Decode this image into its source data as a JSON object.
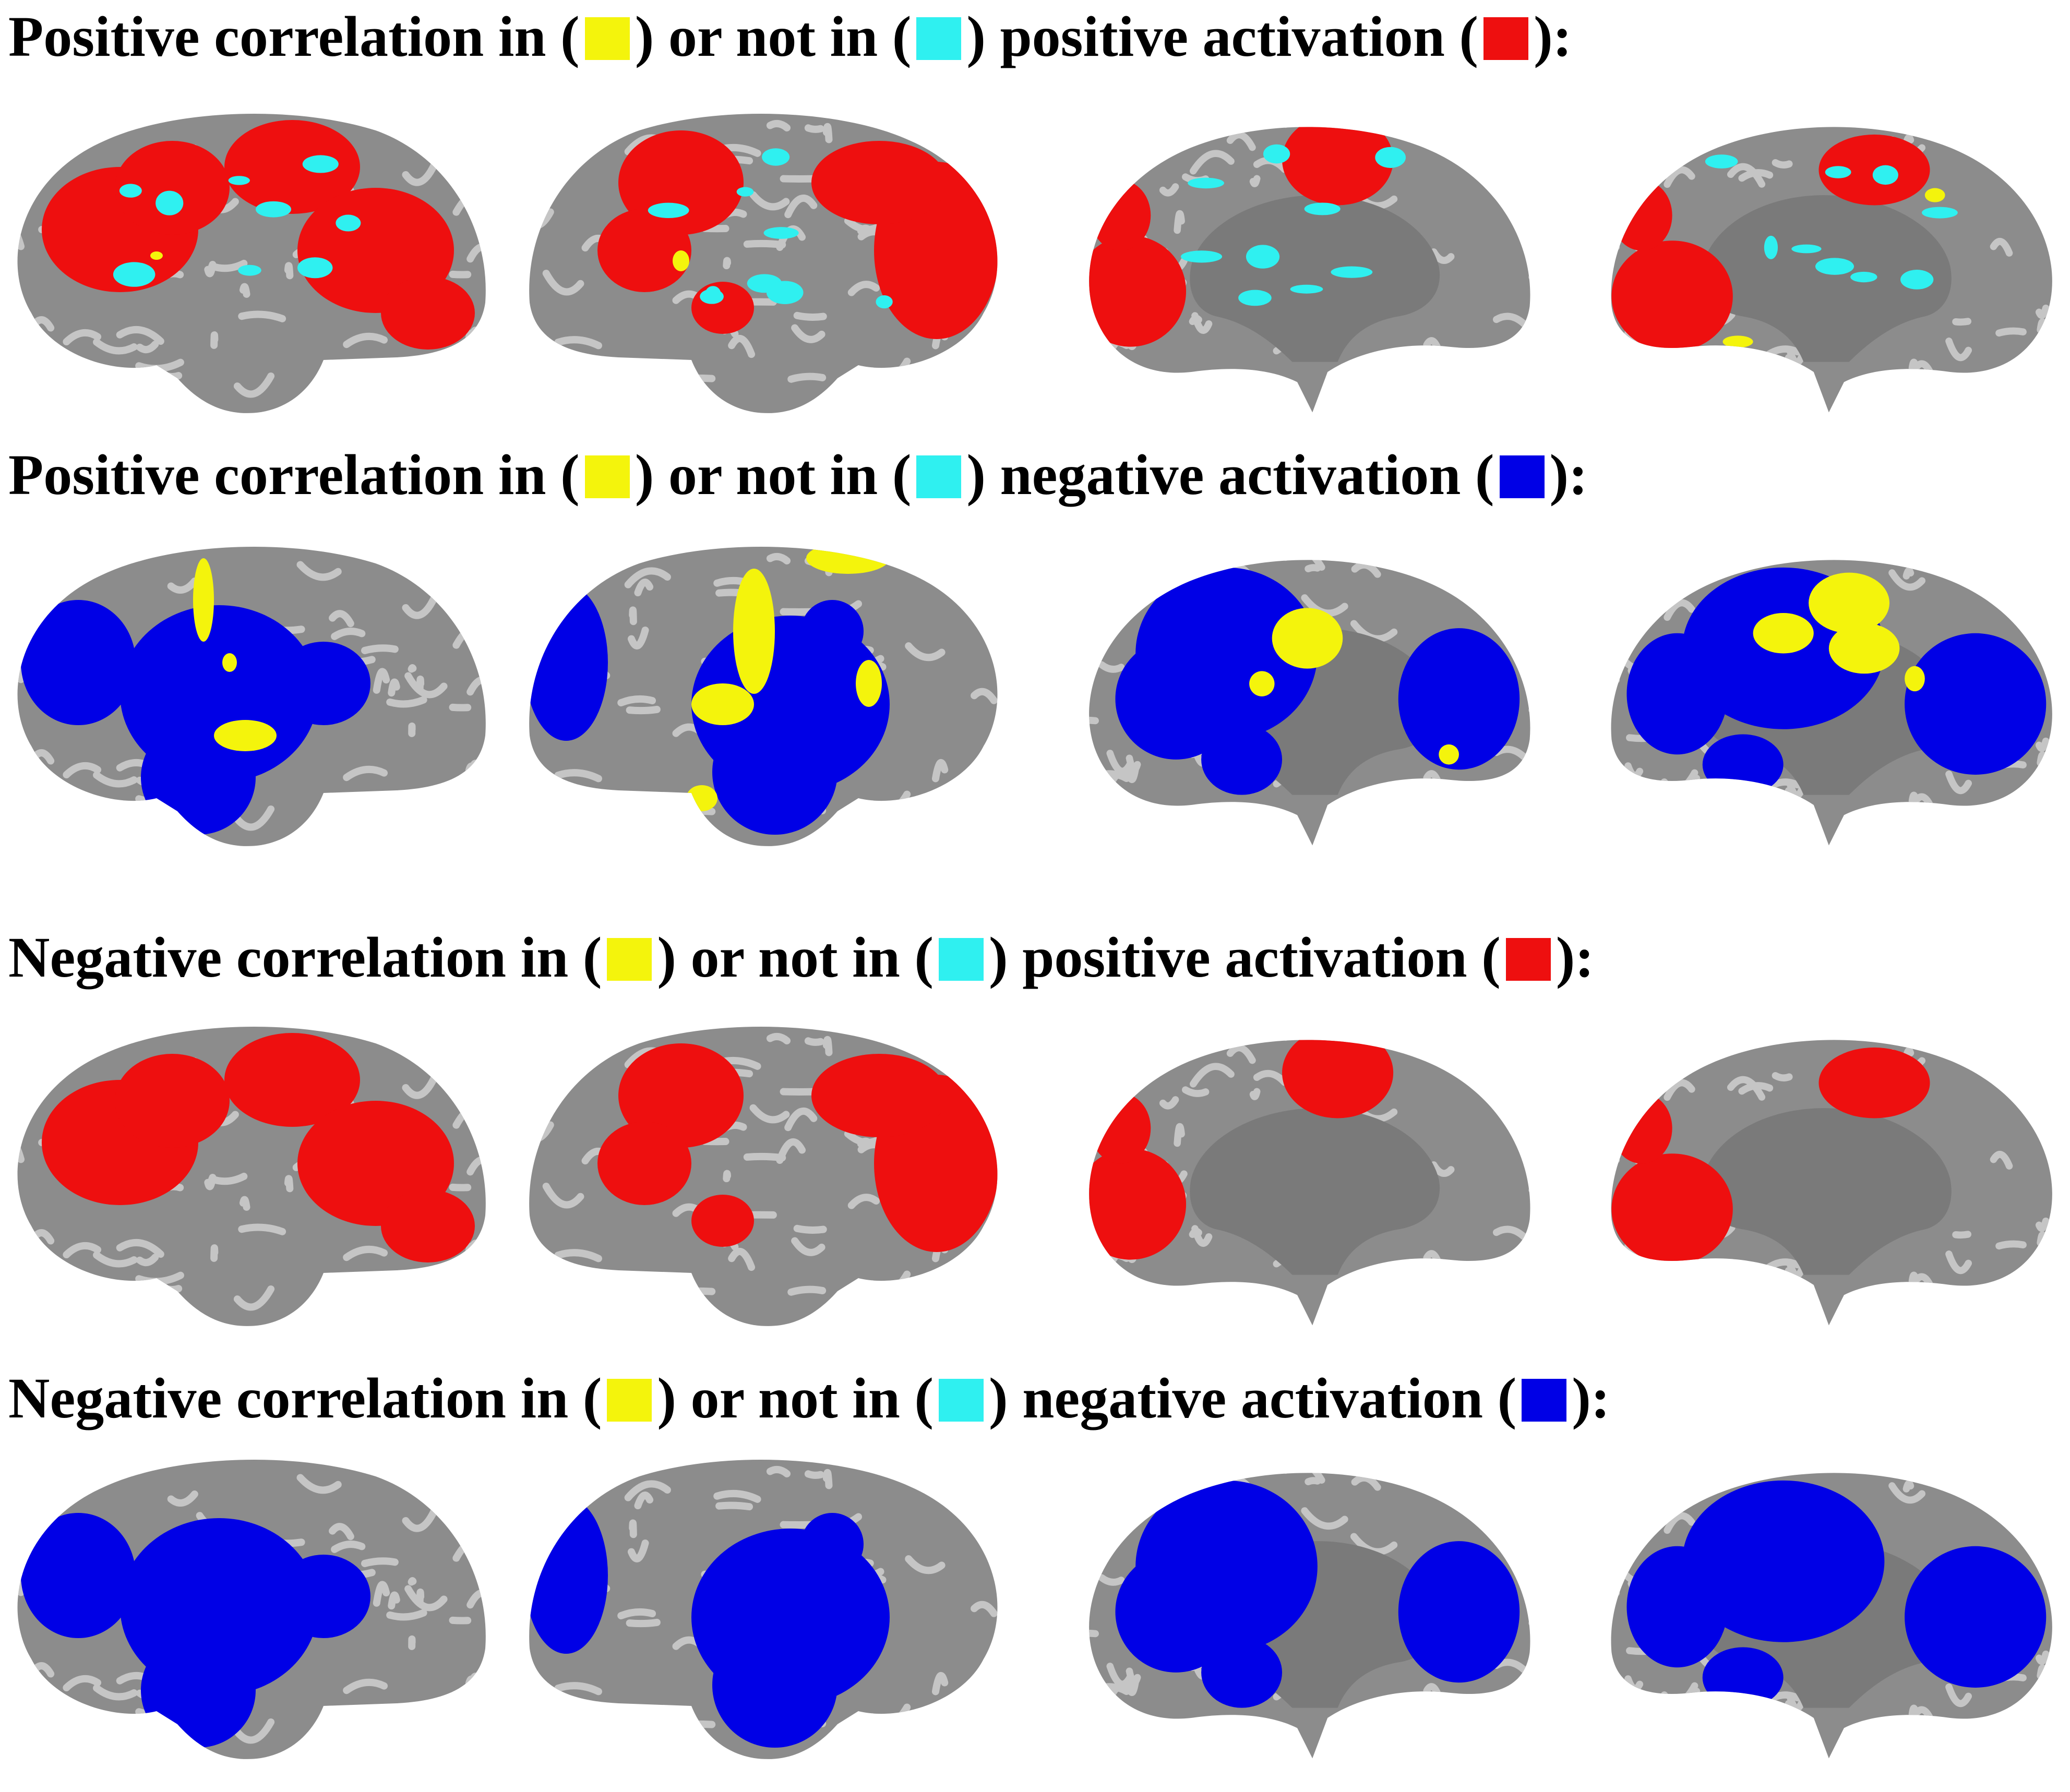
{
  "colors": {
    "yellow": "#f4f40c",
    "cyan": "#2ff0f0",
    "red": "#ee0f0f",
    "blue": "#0000e6",
    "cortex": "#8c8c8c",
    "medial_wall": "#7a7a7a",
    "gyri": "#cfcfcf"
  },
  "rows": [
    {
      "title": {
        "part1": "Positive correlation in (",
        "part2": ") or not in (",
        "part3": ")",
        "activation": "positive activation (",
        "end": "):"
      },
      "activation_color": "red",
      "overlap": "yellow-sparse"
    },
    {
      "title": {
        "part1": "Positive correlation in (",
        "part2": ") or not in (",
        "part3": ")",
        "activation": "negative activation (",
        "end": "):"
      },
      "activation_color": "blue",
      "overlap": "yellow-dense"
    },
    {
      "title": {
        "part1": "Negative correlation in (",
        "part2": ") or not in (",
        "part3": ")",
        "activation": "positive activation (",
        "end": "):"
      },
      "activation_color": "red",
      "overlap": "none"
    },
    {
      "title": {
        "part1": "Negative correlation in (",
        "part2": ") or not in (",
        "part3": ")",
        "activation": "negative activation (",
        "end": "):"
      },
      "activation_color": "blue",
      "overlap": "none"
    }
  ],
  "views": [
    "left-lateral",
    "right-lateral",
    "left-medial",
    "right-medial"
  ]
}
